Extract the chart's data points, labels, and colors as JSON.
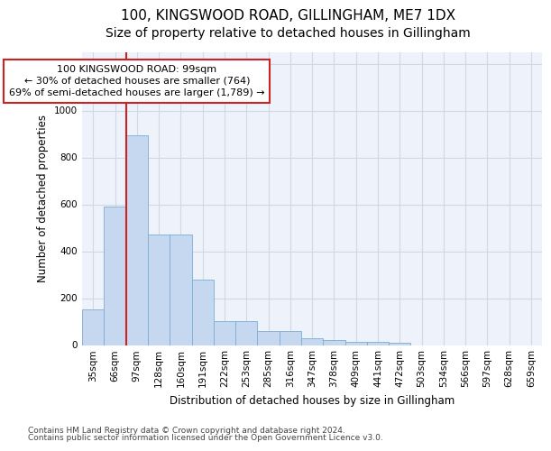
{
  "title1": "100, KINGSWOOD ROAD, GILLINGHAM, ME7 1DX",
  "title2": "Size of property relative to detached houses in Gillingham",
  "xlabel": "Distribution of detached houses by size in Gillingham",
  "ylabel": "Number of detached properties",
  "footer1": "Contains HM Land Registry data © Crown copyright and database right 2024.",
  "footer2": "Contains public sector information licensed under the Open Government Licence v3.0.",
  "bar_labels": [
    "35sqm",
    "66sqm",
    "97sqm",
    "128sqm",
    "160sqm",
    "191sqm",
    "222sqm",
    "253sqm",
    "285sqm",
    "316sqm",
    "347sqm",
    "378sqm",
    "409sqm",
    "441sqm",
    "472sqm",
    "503sqm",
    "534sqm",
    "566sqm",
    "597sqm",
    "628sqm",
    "659sqm"
  ],
  "bar_values": [
    152,
    590,
    893,
    470,
    470,
    280,
    103,
    103,
    60,
    60,
    27,
    20,
    15,
    15,
    10,
    0,
    0,
    0,
    0,
    0,
    0
  ],
  "bar_color": "#c5d8f0",
  "bar_edge_color": "#7aadd4",
  "annotation_line1": "100 KINGSWOOD ROAD: 99sqm",
  "annotation_line2": "← 30% of detached houses are smaller (764)",
  "annotation_line3": "69% of semi-detached houses are larger (1,789) →",
  "vline_x": 1.5,
  "ylim": [
    0,
    1250
  ],
  "yticks": [
    0,
    200,
    400,
    600,
    800,
    1000,
    1200
  ],
  "grid_color": "#d0d8e8",
  "background_color": "#eef2fb",
  "annotation_box_facecolor": "#ffffff",
  "annotation_box_edgecolor": "#cc2222",
  "vline_color": "#cc2222",
  "title1_fontsize": 11,
  "title2_fontsize": 10,
  "axis_label_fontsize": 8.5,
  "tick_fontsize": 7.5,
  "annotation_fontsize": 8,
  "footer_fontsize": 6.5
}
